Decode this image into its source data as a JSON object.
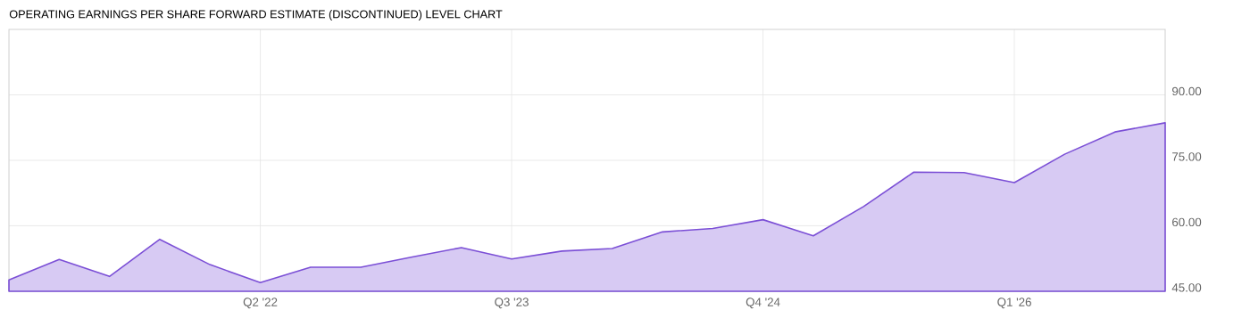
{
  "chart_data": {
    "type": "area",
    "title": "OPERATING EARNINGS PER SHARE FORWARD ESTIMATE (DISCONTINUED) LEVEL CHART",
    "categories": [
      null,
      null,
      null,
      null,
      null,
      "Q2 '22",
      null,
      null,
      null,
      null,
      "Q3 '23",
      null,
      null,
      null,
      null,
      "Q4 '24",
      null,
      null,
      null,
      null,
      "Q1 '26",
      null,
      null,
      null
    ],
    "series": [
      {
        "color": "#7b4fd6",
        "values": [
          47.6,
          52.3,
          48.4,
          56.9,
          51.1,
          47.0,
          50.5,
          50.5,
          52.8,
          55.0,
          52.4,
          54.2,
          54.8,
          58.6,
          59.4,
          61.4,
          57.7,
          64.4,
          72.3,
          72.2,
          69.9,
          76.4,
          81.5,
          83.6
        ]
      }
    ],
    "ylim": [
      45,
      105
    ],
    "yticks": [
      {
        "value": 45,
        "label": "45.00"
      },
      {
        "value": 60,
        "label": "60.00"
      },
      {
        "value": 75,
        "label": "75.00"
      },
      {
        "value": 90,
        "label": "90.00"
      }
    ],
    "grid": true
  }
}
